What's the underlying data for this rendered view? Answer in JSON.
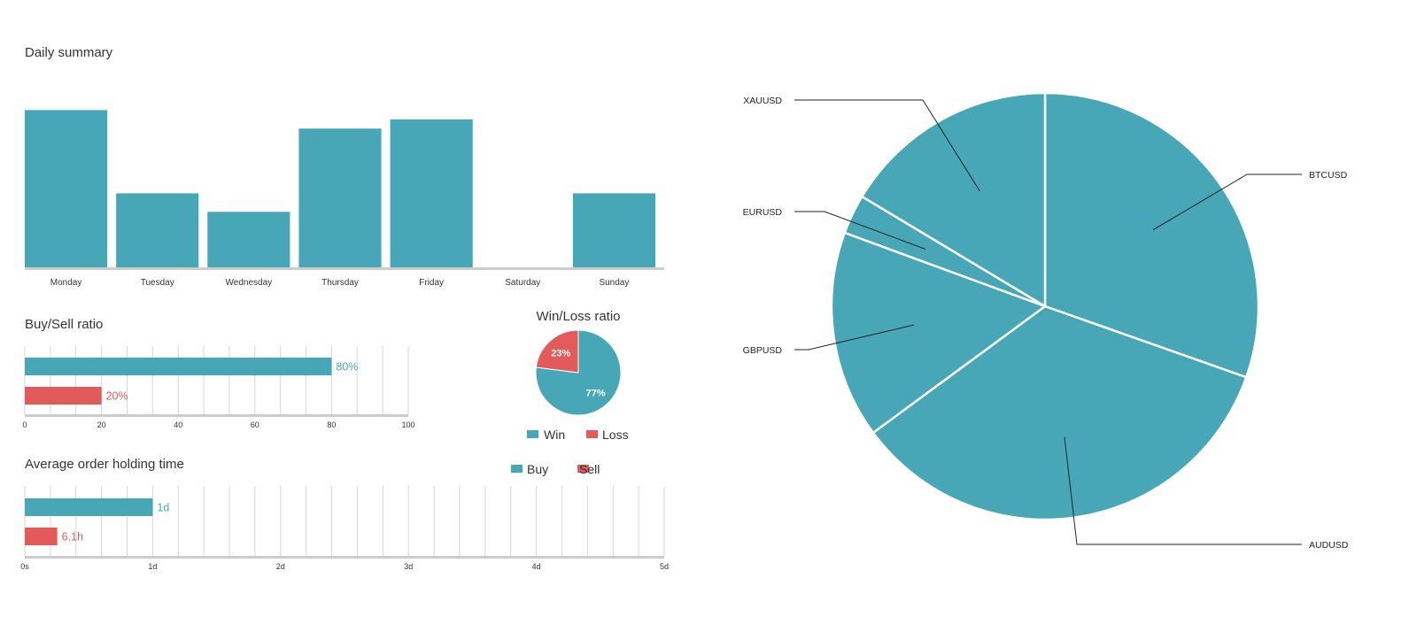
{
  "colors": {
    "teal": "#47a7b6",
    "red": "#e25a5a",
    "grid": "#d6d6d6",
    "axis": "#cccccc",
    "text": "#333333"
  },
  "charts": {
    "daily": {
      "title": "Daily summary"
    },
    "buysell": {
      "title": "Buy/Sell ratio"
    },
    "winloss": {
      "title": "Win/Loss ratio"
    },
    "holding": {
      "title": "Average order holding time"
    },
    "instruments": {
      "title": ""
    }
  },
  "chart_data": [
    {
      "id": "daily",
      "type": "bar",
      "title": "Daily summary",
      "categories": [
        "Monday",
        "Tuesday",
        "Wednesday",
        "Thursday",
        "Friday",
        "Saturday",
        "Sunday"
      ],
      "values": [
        85,
        40,
        30,
        75,
        80,
        0,
        40
      ],
      "ylim": [
        0,
        100
      ],
      "grid": false,
      "legend": "none"
    },
    {
      "id": "buysell",
      "type": "bar",
      "orientation": "horizontal",
      "title": "Buy/Sell ratio",
      "series": [
        {
          "values": [
            80
          ],
          "label": "80%",
          "color": "#47a7b6"
        },
        {
          "values": [
            20
          ],
          "label": "20%",
          "color": "#e25a5a"
        }
      ],
      "xticks": [
        "0",
        "20",
        "40",
        "60",
        "80",
        "100"
      ],
      "xlim": [
        0,
        100
      ],
      "grid": true
    },
    {
      "id": "winloss",
      "type": "pie",
      "title": "Win/Loss ratio",
      "slices": [
        {
          "label": "Win",
          "value": 77,
          "text": "77%",
          "color": "#47a7b6"
        },
        {
          "label": "Loss",
          "value": 23,
          "text": "23%",
          "color": "#e25a5a"
        }
      ],
      "legend": "bottom"
    },
    {
      "id": "holding",
      "type": "bar",
      "orientation": "horizontal",
      "title": "Average order holding time",
      "series": [
        {
          "name": "Buy",
          "values": [
            1.0
          ],
          "label": "1d",
          "color": "#47a7b6"
        },
        {
          "name": "Sell",
          "values": [
            0.254
          ],
          "label": "6.1h",
          "color": "#e25a5a"
        }
      ],
      "xticks": [
        "0s",
        "1d",
        "2d",
        "3d",
        "4d",
        "5d"
      ],
      "xlim": [
        0,
        5
      ],
      "grid": true,
      "legend": "top-right"
    },
    {
      "id": "instruments",
      "type": "pie",
      "slices": [
        {
          "label": "BTCUSD",
          "value": 30.4
        },
        {
          "label": "AUDUSD",
          "value": 34.5
        },
        {
          "label": "GBPUSD",
          "value": 15.7
        },
        {
          "label": "EURUSD",
          "value": 3.0
        },
        {
          "label": "XAUUSD",
          "value": 16.4
        }
      ],
      "color": "#47a7b6",
      "labels": "outside-with-leaders"
    }
  ]
}
